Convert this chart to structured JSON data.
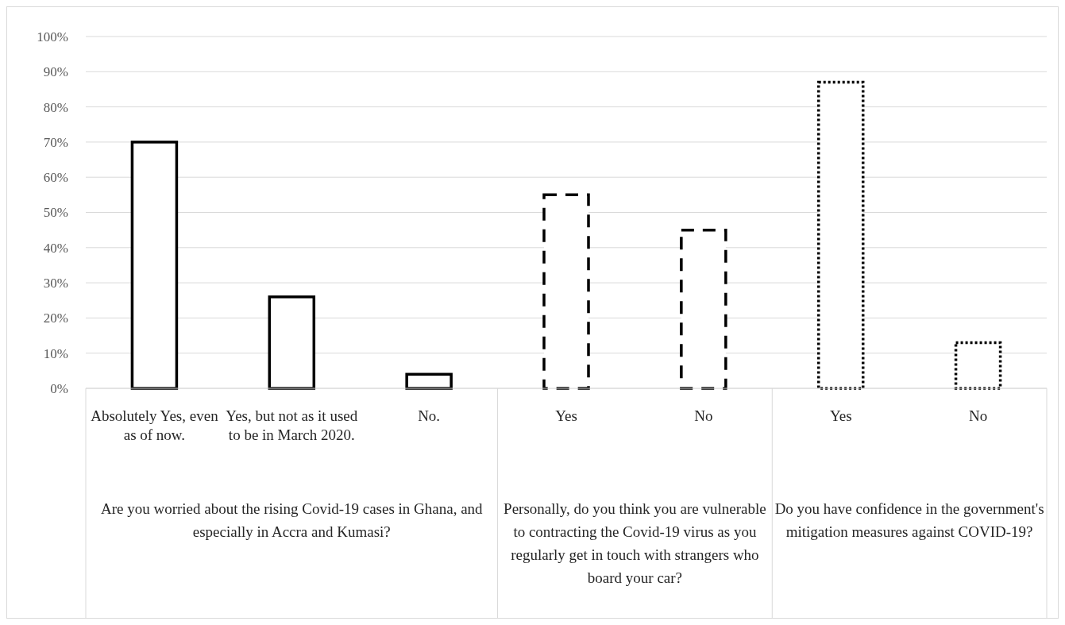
{
  "chart_data": {
    "type": "bar",
    "categories": [
      "Absolutely Yes, even as of now.",
      "Yes, but not as it used to be in March 2020.",
      "No.",
      "Yes",
      "No",
      "Yes",
      "No"
    ],
    "series": [
      {
        "color": "#000000",
        "line_style": "solid",
        "values": [
          70,
          26,
          4,
          null,
          null,
          null,
          null
        ]
      },
      {
        "color": "#000000",
        "line_style": "dashed",
        "values": [
          null,
          null,
          null,
          55,
          45,
          null,
          null
        ]
      },
      {
        "color": "#000000",
        "line_style": "dotted",
        "values": [
          null,
          null,
          null,
          null,
          null,
          87,
          13
        ]
      }
    ],
    "annotations": [
      "Are you worried about the rising Covid-19 cases in Ghana, and especially in Accra and Kumasi?",
      "Personally, do you think you are vulnerable to contracting the Covid-19 virus as you regularly get in touch with strangers who board your car?",
      "Do you have confidence in the government's mitigation measures against COVID-19?"
    ],
    "ylim": [
      0,
      100
    ],
    "yticks": [
      {
        "value": 0,
        "label": "0%"
      },
      {
        "value": 10,
        "label": "10%"
      },
      {
        "value": 20,
        "label": "20%"
      },
      {
        "value": 30,
        "label": "30%"
      },
      {
        "value": 40,
        "label": "40%"
      },
      {
        "value": 50,
        "label": "50%"
      },
      {
        "value": 60,
        "label": "60%"
      },
      {
        "value": 70,
        "label": "70%"
      },
      {
        "value": 80,
        "label": "80%"
      },
      {
        "value": 90,
        "label": "90%"
      },
      {
        "value": 100,
        "label": "100%"
      }
    ],
    "grid": true
  }
}
